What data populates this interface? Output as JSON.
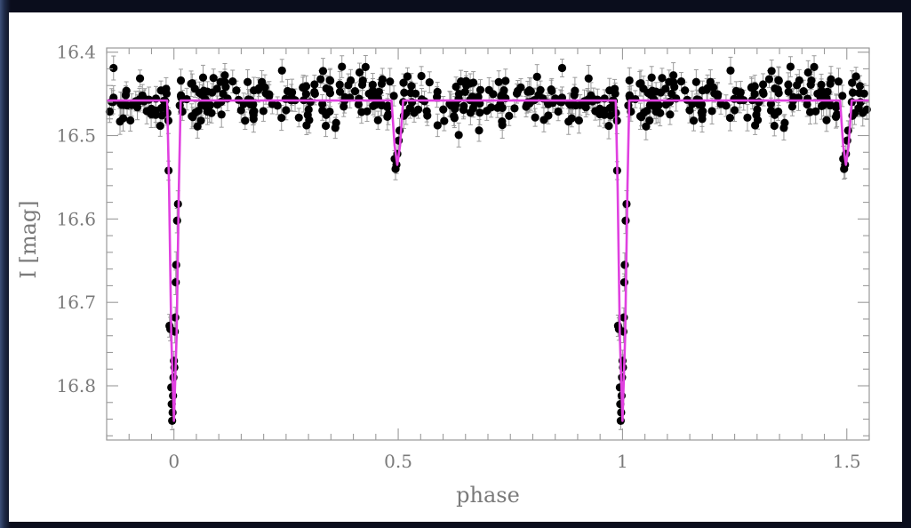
{
  "chart_data": {
    "type": "scatter",
    "title": "",
    "xlabel": "phase",
    "ylabel": "I [mag]",
    "xlim": [
      -0.15,
      1.55
    ],
    "ylim": [
      16.865,
      16.395
    ],
    "y_inverted": true,
    "x_ticks": [
      0,
      0.5,
      1,
      1.5
    ],
    "x_tick_labels": [
      "0",
      "0.5",
      "1",
      "1.5"
    ],
    "y_ticks": [
      16.4,
      16.5,
      16.6,
      16.7,
      16.8
    ],
    "y_tick_labels": [
      "16.4",
      "16.5",
      "16.6",
      "16.7",
      "16.8"
    ],
    "grid": false,
    "colors": {
      "points": "#000000",
      "errorbars": "#9a9a9a",
      "model": "#e040e0",
      "axes": "#9a9a9a",
      "text": "#7a7a7a"
    },
    "series": [
      {
        "kind": "observations",
        "baseline_mag": 16.458,
        "baseline_scatter": 0.015,
        "primary_eclipse_points": [
          {
            "x": -0.012,
            "y": 16.542
          },
          {
            "x": -0.01,
            "y": 16.728
          },
          {
            "x": -0.008,
            "y": 16.732
          },
          {
            "x": -0.006,
            "y": 16.802
          },
          {
            "x": -0.005,
            "y": 16.822
          },
          {
            "x": -0.004,
            "y": 16.842
          },
          {
            "x": -0.003,
            "y": 16.832
          },
          {
            "x": -0.002,
            "y": 16.812
          },
          {
            "x": -0.001,
            "y": 16.79
          },
          {
            "x": 0.0,
            "y": 16.77
          },
          {
            "x": 0.001,
            "y": 16.778
          },
          {
            "x": 0.002,
            "y": 16.735
          },
          {
            "x": 0.003,
            "y": 16.718
          },
          {
            "x": 0.004,
            "y": 16.676
          },
          {
            "x": 0.005,
            "y": 16.655
          },
          {
            "x": 0.007,
            "y": 16.602
          },
          {
            "x": 0.009,
            "y": 16.582
          }
        ],
        "secondary_eclipse_points": [
          {
            "x": 0.492,
            "y": 16.528
          },
          {
            "x": 0.494,
            "y": 16.54
          },
          {
            "x": 0.496,
            "y": 16.535
          },
          {
            "x": 0.498,
            "y": 16.522
          },
          {
            "x": 0.501,
            "y": 16.506
          },
          {
            "x": 0.503,
            "y": 16.494
          }
        ]
      },
      {
        "kind": "model",
        "points": [
          [
            -0.15,
            16.458
          ],
          [
            -0.015,
            16.458
          ],
          [
            -0.011,
            16.56
          ],
          [
            -0.006,
            16.74
          ],
          [
            0.0,
            16.842
          ],
          [
            0.006,
            16.74
          ],
          [
            0.011,
            16.56
          ],
          [
            0.015,
            16.458
          ],
          [
            0.485,
            16.458
          ],
          [
            0.492,
            16.512
          ],
          [
            0.498,
            16.535
          ],
          [
            0.504,
            16.512
          ],
          [
            0.511,
            16.458
          ],
          [
            0.985,
            16.458
          ],
          [
            0.989,
            16.56
          ],
          [
            0.994,
            16.74
          ],
          [
            1.0,
            16.842
          ],
          [
            1.006,
            16.74
          ],
          [
            1.011,
            16.56
          ],
          [
            1.015,
            16.458
          ],
          [
            1.485,
            16.458
          ],
          [
            1.492,
            16.512
          ],
          [
            1.498,
            16.535
          ],
          [
            1.504,
            16.512
          ],
          [
            1.511,
            16.458
          ],
          [
            1.55,
            16.458
          ]
        ]
      }
    ]
  }
}
